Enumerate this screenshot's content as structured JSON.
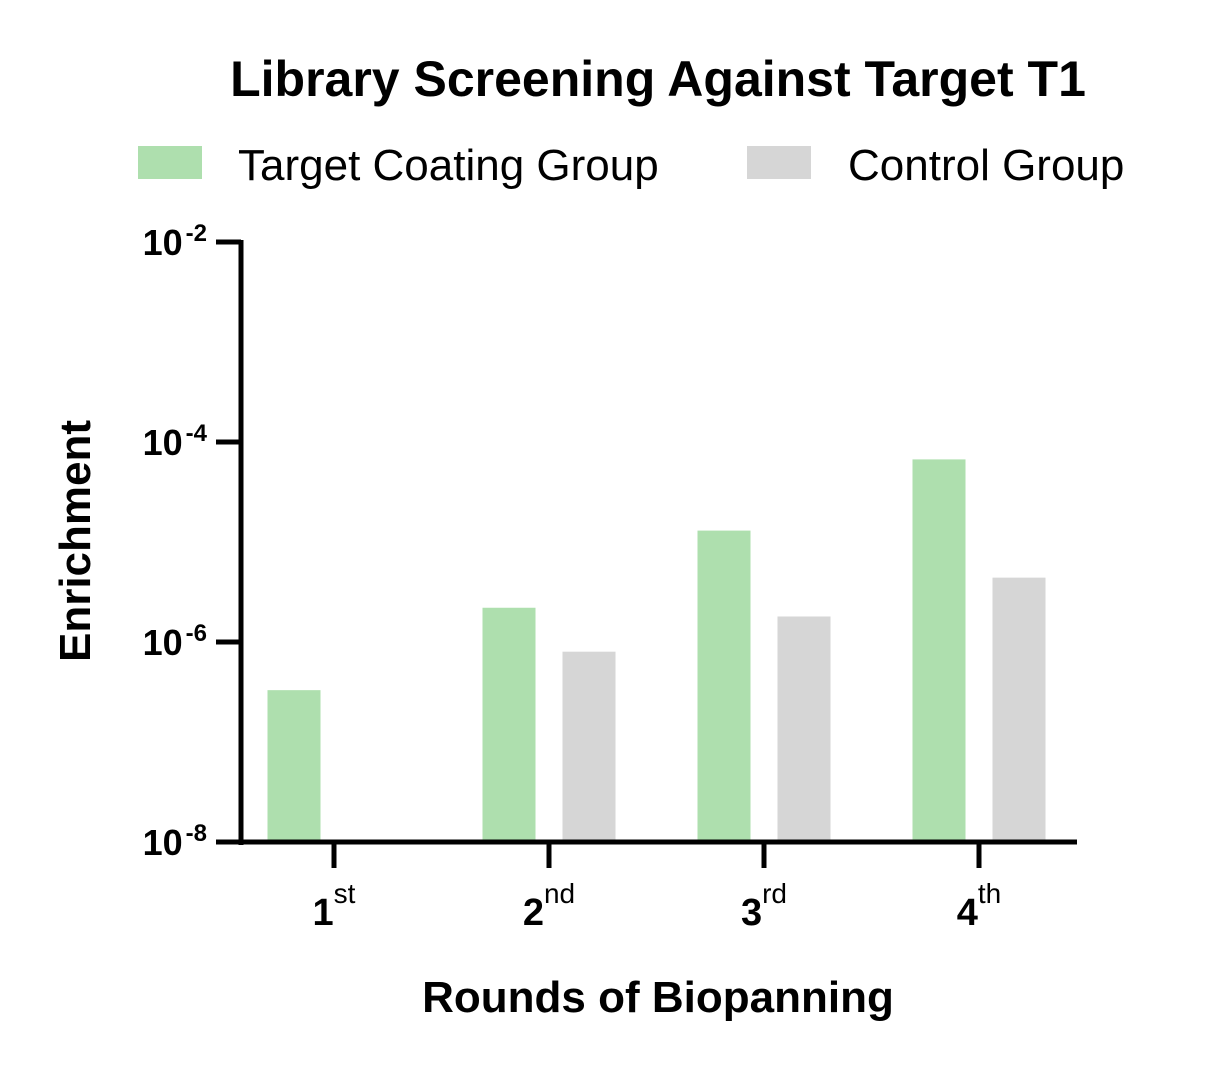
{
  "chart_data": {
    "type": "bar",
    "title": "Library Screening Against Target T1",
    "xlabel": "Rounds of Biopanning",
    "ylabel": "Enrichment",
    "categories": [
      "1st",
      "2nd",
      "3rd",
      "4th"
    ],
    "category_labels": [
      {
        "main": "1",
        "sup": "st"
      },
      {
        "main": "2",
        "sup": "nd"
      },
      {
        "main": "3",
        "sup": "rd"
      },
      {
        "main": "4",
        "sup": "th"
      }
    ],
    "y_scale": "log",
    "ylim": [
      1e-08,
      0.01
    ],
    "y_ticks": [
      {
        "value": 1e-08,
        "base": "10",
        "exp": "-8"
      },
      {
        "value": 1e-06,
        "base": "10",
        "exp": "-6"
      },
      {
        "value": 0.0001,
        "base": "10",
        "exp": "-4"
      },
      {
        "value": 0.01,
        "base": "10",
        "exp": "-2"
      }
    ],
    "series": [
      {
        "name": "Target Coating Group",
        "color": "#aedfae",
        "values": [
          3.3e-07,
          2.2e-06,
          1.3e-05,
          6.7e-05
        ]
      },
      {
        "name": "Control Group",
        "color": "#d6d6d6",
        "values": [
          null,
          8e-07,
          1.8e-06,
          4.4e-06
        ]
      }
    ],
    "legend_position": "top",
    "grid": false
  }
}
